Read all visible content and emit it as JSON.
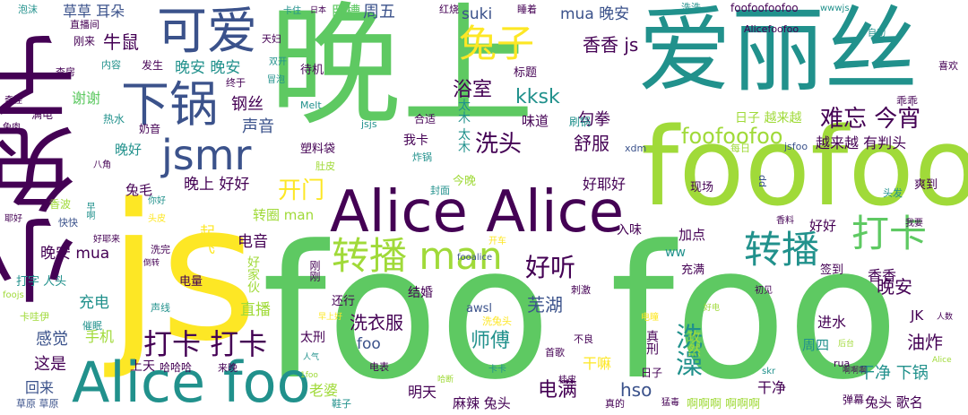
{
  "palette": {
    "p": "#440154",
    "d": "#3b528b",
    "t": "#21918c",
    "g": "#5ec962",
    "l": "#a0da39",
    "y": "#fde725"
  },
  "words": [
    {
      "text": "晚上",
      "color": "g"
    },
    {
      "text": "爱丽丝",
      "color": "t"
    },
    {
      "text": "js",
      "color": "y"
    },
    {
      "text": "foo foo",
      "color": "g"
    },
    {
      "text": "foofoo",
      "color": "l"
    },
    {
      "text": "小兔子",
      "color": "p"
    },
    {
      "text": "Alice Alice",
      "color": "p"
    },
    {
      "text": "Alice foo",
      "color": "t"
    },
    {
      "text": "可爱",
      "color": "d"
    },
    {
      "text": "下锅",
      "color": "d"
    },
    {
      "text": "jsmr",
      "color": "d"
    },
    {
      "text": "转播 man",
      "color": "l"
    },
    {
      "text": "转播",
      "color": "t"
    },
    {
      "text": "兔子",
      "color": "y"
    },
    {
      "text": "打卡",
      "color": "g"
    },
    {
      "text": "打卡 打卡",
      "color": "p"
    },
    {
      "text": "好听",
      "color": "p"
    },
    {
      "text": "洗澡",
      "color": "t"
    },
    {
      "text": "foofoofoo",
      "color": "l"
    },
    {
      "text": "难忘 今宵",
      "color": "p"
    },
    {
      "text": "越来越 有判头",
      "color": "p"
    },
    {
      "text": "开门",
      "color": "y"
    },
    {
      "text": "洗头",
      "color": "p"
    },
    {
      "text": "kksk",
      "color": "t"
    },
    {
      "text": "浴室",
      "color": "p"
    },
    {
      "text": "香香 js",
      "color": "p"
    },
    {
      "text": "mua 晚安",
      "color": "d"
    },
    {
      "text": "suki",
      "color": "d"
    },
    {
      "text": "周五",
      "color": "d"
    },
    {
      "text": "卧槽",
      "color": "g"
    },
    {
      "text": "草草 耳朵",
      "color": "d"
    },
    {
      "text": "牛鼠",
      "color": "p"
    },
    {
      "text": "晚安 晚安",
      "color": "t"
    },
    {
      "text": "钢丝",
      "color": "p"
    },
    {
      "text": "声音",
      "color": "d"
    },
    {
      "text": "谢谢",
      "color": "g"
    },
    {
      "text": "晚好",
      "color": "t"
    },
    {
      "text": "兔毛",
      "color": "p"
    },
    {
      "text": "晚上 好好",
      "color": "p"
    },
    {
      "text": "转圈 man",
      "color": "l"
    },
    {
      "text": "电音",
      "color": "p"
    },
    {
      "text": "起飞",
      "color": "y"
    },
    {
      "text": "晚安 mua",
      "color": "p"
    },
    {
      "text": "打字 人头",
      "color": "t"
    },
    {
      "text": "充电",
      "color": "t"
    },
    {
      "text": "电量",
      "color": "p"
    },
    {
      "text": "直播",
      "color": "l"
    },
    {
      "text": "感觉",
      "color": "d"
    },
    {
      "text": "手机",
      "color": "l"
    },
    {
      "text": "这是",
      "color": "p"
    },
    {
      "text": "回来",
      "color": "d"
    },
    {
      "text": "上天",
      "color": "p"
    },
    {
      "text": "哈哈哈",
      "color": "p"
    },
    {
      "text": "洗衣服",
      "color": "p"
    },
    {
      "text": "foo",
      "color": "d"
    },
    {
      "text": "太刑",
      "color": "p"
    },
    {
      "text": "老婆",
      "color": "l"
    },
    {
      "text": "明天",
      "color": "p"
    },
    {
      "text": "师傅",
      "color": "t"
    },
    {
      "text": "芜湖",
      "color": "d"
    },
    {
      "text": "电满",
      "color": "p"
    },
    {
      "text": "麻辣 兔头",
      "color": "p"
    },
    {
      "text": "hso",
      "color": "d"
    },
    {
      "text": "干嘛",
      "color": "y"
    },
    {
      "text": "舒服",
      "color": "p"
    },
    {
      "text": "勾拳",
      "color": "p"
    },
    {
      "text": "好耶好",
      "color": "p"
    },
    {
      "text": "味道",
      "color": "p"
    },
    {
      "text": "我卡",
      "color": "p"
    },
    {
      "text": "太木 太木",
      "color": "t"
    },
    {
      "text": "入味",
      "color": "p"
    },
    {
      "text": "加点",
      "color": "p"
    },
    {
      "text": "ww",
      "color": "t"
    },
    {
      "text": "好好",
      "color": "p"
    },
    {
      "text": "晚安",
      "color": "p"
    },
    {
      "text": "香香",
      "color": "p"
    },
    {
      "text": "油炸",
      "color": "p"
    },
    {
      "text": "进水",
      "color": "p"
    },
    {
      "text": "周四",
      "color": "t"
    },
    {
      "text": "JK",
      "color": "p"
    },
    {
      "text": "干净 下锅",
      "color": "t"
    },
    {
      "text": "干净",
      "color": "p"
    },
    {
      "text": "兔头 歌名",
      "color": "p"
    },
    {
      "text": "啊啊啊 啊啊啊",
      "color": "l"
    },
    {
      "text": "玫然",
      "color": "l"
    },
    {
      "text": "真刑",
      "color": "p"
    },
    {
      "text": "awsl",
      "color": "d"
    },
    {
      "text": "结婚",
      "color": "p"
    },
    {
      "text": "还行",
      "color": "p"
    },
    {
      "text": "好家伙",
      "color": "l"
    },
    {
      "text": "刚刚",
      "color": "p"
    },
    {
      "text": "现场",
      "color": "p"
    },
    {
      "text": "充满",
      "color": "p"
    },
    {
      "text": "签到",
      "color": "p"
    },
    {
      "text": "爽到",
      "color": "p"
    },
    {
      "text": "头发",
      "color": "t"
    },
    {
      "text": "日子 越来越",
      "color": "l"
    },
    {
      "text": "乖乖",
      "color": "p"
    },
    {
      "text": "喜欢",
      "color": "p"
    },
    {
      "text": "标题",
      "color": "p"
    },
    {
      "text": "待机",
      "color": "p"
    },
    {
      "text": "刷锅",
      "color": "t"
    },
    {
      "text": "合适",
      "color": "p"
    },
    {
      "text": "jsjs",
      "color": "t"
    },
    {
      "text": "塑料袋",
      "color": "p"
    },
    {
      "text": "肚皮",
      "color": "l"
    },
    {
      "text": "炸锅",
      "color": "t"
    },
    {
      "text": "今晚",
      "color": "l"
    },
    {
      "text": "封面",
      "color": "t"
    },
    {
      "text": "Melt",
      "color": "t"
    },
    {
      "text": "xdm",
      "color": "d"
    },
    {
      "text": "jsfoo",
      "color": "d"
    },
    {
      "text": "每日",
      "color": "l"
    },
    {
      "text": "dd",
      "color": "d"
    },
    {
      "text": "foofoofoofoo",
      "color": "p"
    },
    {
      "text": "Alicefoofoo",
      "color": "p"
    },
    {
      "text": "洗洗",
      "color": "t"
    },
    {
      "text": "睡着",
      "color": "p"
    },
    {
      "text": "红烧",
      "color": "p"
    },
    {
      "text": "日本",
      "color": "p"
    },
    {
      "text": "卡住",
      "color": "t"
    },
    {
      "text": "wwwjs",
      "color": "t"
    },
    {
      "text": "自动",
      "color": "t"
    },
    {
      "text": "泡沫",
      "color": "t"
    },
    {
      "text": "直播间",
      "color": "p"
    },
    {
      "text": "刚来",
      "color": "p"
    },
    {
      "text": "天妇",
      "color": "p"
    },
    {
      "text": "双开",
      "color": "t"
    },
    {
      "text": "内容",
      "color": "t"
    },
    {
      "text": "发生",
      "color": "p"
    },
    {
      "text": "查房",
      "color": "p"
    },
    {
      "text": "冒泡",
      "color": "t"
    },
    {
      "text": "终于",
      "color": "p"
    },
    {
      "text": "奇怪",
      "color": "p"
    },
    {
      "text": "满电",
      "color": "p"
    },
    {
      "text": "热水",
      "color": "t"
    },
    {
      "text": "奶音",
      "color": "p"
    },
    {
      "text": "兔肉",
      "color": "p"
    },
    {
      "text": "八角",
      "color": "p"
    },
    {
      "text": "香波",
      "color": "l"
    },
    {
      "text": "耶好",
      "color": "p"
    },
    {
      "text": "快快",
      "color": "d"
    },
    {
      "text": "早啊",
      "color": "t"
    },
    {
      "text": "好耶来",
      "color": "p"
    },
    {
      "text": "洗完",
      "color": "p"
    },
    {
      "text": "倒转",
      "color": "p"
    },
    {
      "text": "头皮",
      "color": "y"
    },
    {
      "text": "香料",
      "color": "p"
    },
    {
      "text": "你好",
      "color": "t"
    },
    {
      "text": "我要",
      "color": "p"
    },
    {
      "text": "开车",
      "color": "y"
    },
    {
      "text": "fooalice",
      "color": "d"
    },
    {
      "text": "foojs",
      "color": "l"
    },
    {
      "text": "卡哇伊",
      "color": "l"
    },
    {
      "text": "催眠",
      "color": "t"
    },
    {
      "text": "声线",
      "color": "t"
    },
    {
      "text": "早上好",
      "color": "y"
    },
    {
      "text": "洗兔头",
      "color": "y"
    },
    {
      "text": "刺激",
      "color": "p"
    },
    {
      "text": "初见",
      "color": "p"
    },
    {
      "text": "好电",
      "color": "l"
    },
    {
      "text": "人数",
      "color": "p"
    },
    {
      "text": "电瞳",
      "color": "y"
    },
    {
      "text": "不良",
      "color": "p"
    },
    {
      "text": "后台",
      "color": "l"
    },
    {
      "text": "人气",
      "color": "t"
    },
    {
      "text": "来晚",
      "color": "p"
    },
    {
      "text": "首歌",
      "color": "p"
    },
    {
      "text": "电表",
      "color": "p"
    },
    {
      "text": "卡卡",
      "color": "t"
    },
    {
      "text": "1foo",
      "color": "l"
    },
    {
      "text": "哈断",
      "color": "l"
    },
    {
      "text": "草原 草原",
      "color": "d"
    },
    {
      "text": "鞋子",
      "color": "t"
    },
    {
      "text": "桂皮",
      "color": "p"
    },
    {
      "text": "真的",
      "color": "p"
    },
    {
      "text": "日子",
      "color": "p"
    },
    {
      "text": "skr",
      "color": "t"
    },
    {
      "text": "猛毒",
      "color": "p"
    },
    {
      "text": "弹幕",
      "color": "p"
    },
    {
      "text": "rua",
      "color": "p"
    },
    {
      "text": "啊啊啊",
      "color": "p"
    },
    {
      "text": "Alice",
      "color": "l"
    }
  ]
}
